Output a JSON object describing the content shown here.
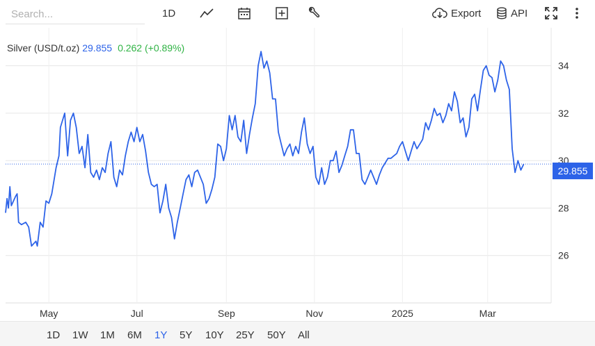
{
  "toolbar": {
    "search_placeholder": "Search...",
    "interval_label": "1D",
    "export_label": "Export",
    "api_label": "API",
    "icons": [
      "line-chart-icon",
      "calendar-icon",
      "plus-square-icon",
      "wrench-icon",
      "cloud-download-icon",
      "database-icon",
      "fullscreen-icon",
      "more-vert-icon",
      "gear-icon"
    ]
  },
  "legend": {
    "name": "Silver (USD/t.oz)",
    "value": "29.855",
    "change": "0.262 (+0.89%)"
  },
  "last_price_label": "29.855",
  "colors": {
    "line": "#2d63e8",
    "change_positive": "#2fb344",
    "grid": "#e6e6e6"
  },
  "range_buttons": [
    "1D",
    "1W",
    "1M",
    "6M",
    "1Y",
    "5Y",
    "10Y",
    "25Y",
    "50Y",
    "All"
  ],
  "active_range": "1Y",
  "chart_data": {
    "type": "line",
    "title": "",
    "xlabel": "",
    "ylabel": "",
    "ylim": [
      24,
      35.6
    ],
    "yticks": [
      26,
      28,
      30,
      32,
      34
    ],
    "xticks": [
      {
        "label": "May",
        "x": "2024-05-01"
      },
      {
        "label": "Jul",
        "x": "2024-07-01"
      },
      {
        "label": "Sep",
        "x": "2024-09-01"
      },
      {
        "label": "Nov",
        "x": "2024-11-01"
      },
      {
        "label": "2025",
        "x": "2025-01-01"
      },
      {
        "label": "Mar",
        "x": "2025-03-01"
      }
    ],
    "xlim": [
      "2024-04-01",
      "2025-04-14"
    ],
    "grid": true,
    "series": [
      {
        "name": "Silver (USD/t.oz)",
        "points": [
          [
            "2024-04-01",
            27.8
          ],
          [
            "2024-04-02",
            28.4
          ],
          [
            "2024-04-03",
            28.0
          ],
          [
            "2024-04-04",
            28.9
          ],
          [
            "2024-04-05",
            28.1
          ],
          [
            "2024-04-08",
            28.5
          ],
          [
            "2024-04-09",
            28.6
          ],
          [
            "2024-04-10",
            27.4
          ],
          [
            "2024-04-12",
            27.3
          ],
          [
            "2024-04-15",
            27.4
          ],
          [
            "2024-04-17",
            27.2
          ],
          [
            "2024-04-19",
            26.4
          ],
          [
            "2024-04-22",
            26.6
          ],
          [
            "2024-04-23",
            26.4
          ],
          [
            "2024-04-25",
            27.4
          ],
          [
            "2024-04-27",
            27.2
          ],
          [
            "2024-04-29",
            28.3
          ],
          [
            "2024-05-01",
            28.2
          ],
          [
            "2024-05-03",
            28.6
          ],
          [
            "2024-05-06",
            29.7
          ],
          [
            "2024-05-08",
            30.2
          ],
          [
            "2024-05-09",
            31.4
          ],
          [
            "2024-05-12",
            32.0
          ],
          [
            "2024-05-14",
            30.2
          ],
          [
            "2024-05-16",
            31.7
          ],
          [
            "2024-05-18",
            32.0
          ],
          [
            "2024-05-20",
            31.4
          ],
          [
            "2024-05-22",
            30.3
          ],
          [
            "2024-05-24",
            30.6
          ],
          [
            "2024-05-26",
            29.7
          ],
          [
            "2024-05-28",
            31.1
          ],
          [
            "2024-05-30",
            29.5
          ],
          [
            "2024-06-01",
            29.3
          ],
          [
            "2024-06-03",
            29.6
          ],
          [
            "2024-06-05",
            29.2
          ],
          [
            "2024-06-07",
            29.7
          ],
          [
            "2024-06-09",
            29.5
          ],
          [
            "2024-06-11",
            30.3
          ],
          [
            "2024-06-13",
            30.8
          ],
          [
            "2024-06-15",
            29.3
          ],
          [
            "2024-06-17",
            28.9
          ],
          [
            "2024-06-19",
            29.6
          ],
          [
            "2024-06-21",
            29.4
          ],
          [
            "2024-06-23",
            30.2
          ],
          [
            "2024-06-25",
            30.8
          ],
          [
            "2024-06-27",
            31.2
          ],
          [
            "2024-06-29",
            30.8
          ],
          [
            "2024-07-01",
            31.4
          ],
          [
            "2024-07-03",
            30.8
          ],
          [
            "2024-07-05",
            31.1
          ],
          [
            "2024-07-07",
            30.4
          ],
          [
            "2024-07-09",
            29.5
          ],
          [
            "2024-07-11",
            29.0
          ],
          [
            "2024-07-13",
            28.9
          ],
          [
            "2024-07-15",
            29.0
          ],
          [
            "2024-07-17",
            27.8
          ],
          [
            "2024-07-19",
            28.3
          ],
          [
            "2024-07-21",
            29.0
          ],
          [
            "2024-07-23",
            28.0
          ],
          [
            "2024-07-25",
            27.6
          ],
          [
            "2024-07-27",
            26.7
          ],
          [
            "2024-07-29",
            27.4
          ],
          [
            "2024-07-31",
            28.0
          ],
          [
            "2024-08-02",
            28.6
          ],
          [
            "2024-08-04",
            29.2
          ],
          [
            "2024-08-06",
            29.4
          ],
          [
            "2024-08-08",
            28.9
          ],
          [
            "2024-08-10",
            29.5
          ],
          [
            "2024-08-12",
            29.6
          ],
          [
            "2024-08-14",
            29.3
          ],
          [
            "2024-08-16",
            29.0
          ],
          [
            "2024-08-18",
            28.2
          ],
          [
            "2024-08-20",
            28.4
          ],
          [
            "2024-08-22",
            28.8
          ],
          [
            "2024-08-24",
            29.3
          ],
          [
            "2024-08-26",
            30.7
          ],
          [
            "2024-08-28",
            30.6
          ],
          [
            "2024-08-30",
            30.0
          ],
          [
            "2024-09-01",
            30.5
          ],
          [
            "2024-09-03",
            31.9
          ],
          [
            "2024-09-05",
            31.3
          ],
          [
            "2024-09-07",
            31.9
          ],
          [
            "2024-09-09",
            31.0
          ],
          [
            "2024-09-11",
            30.8
          ],
          [
            "2024-09-13",
            31.7
          ],
          [
            "2024-09-15",
            30.3
          ],
          [
            "2024-09-17",
            31.1
          ],
          [
            "2024-09-19",
            31.8
          ],
          [
            "2024-09-21",
            32.4
          ],
          [
            "2024-09-23",
            34.0
          ],
          [
            "2024-09-25",
            34.6
          ],
          [
            "2024-09-27",
            33.9
          ],
          [
            "2024-09-29",
            34.2
          ],
          [
            "2024-10-01",
            33.7
          ],
          [
            "2024-10-03",
            32.6
          ],
          [
            "2024-10-05",
            32.6
          ],
          [
            "2024-10-07",
            31.2
          ],
          [
            "2024-10-09",
            30.7
          ],
          [
            "2024-10-11",
            30.2
          ],
          [
            "2024-10-13",
            30.5
          ],
          [
            "2024-10-15",
            30.7
          ],
          [
            "2024-10-17",
            30.2
          ],
          [
            "2024-10-19",
            30.6
          ],
          [
            "2024-10-21",
            30.3
          ],
          [
            "2024-10-23",
            31.2
          ],
          [
            "2024-10-25",
            31.8
          ],
          [
            "2024-10-27",
            30.7
          ],
          [
            "2024-10-29",
            30.3
          ],
          [
            "2024-10-31",
            30.6
          ],
          [
            "2024-11-02",
            29.3
          ],
          [
            "2024-11-04",
            29.0
          ],
          [
            "2024-11-06",
            29.7
          ],
          [
            "2024-11-08",
            29.0
          ],
          [
            "2024-11-10",
            29.3
          ],
          [
            "2024-11-12",
            30.0
          ],
          [
            "2024-11-14",
            30.0
          ],
          [
            "2024-11-16",
            30.4
          ],
          [
            "2024-11-18",
            29.5
          ],
          [
            "2024-11-20",
            29.8
          ],
          [
            "2024-11-22",
            30.2
          ],
          [
            "2024-11-24",
            30.6
          ],
          [
            "2024-11-26",
            31.3
          ],
          [
            "2024-11-28",
            31.3
          ],
          [
            "2024-11-30",
            30.3
          ],
          [
            "2024-12-02",
            30.3
          ],
          [
            "2024-12-04",
            29.2
          ],
          [
            "2024-12-06",
            29.0
          ],
          [
            "2024-12-08",
            29.3
          ],
          [
            "2024-12-10",
            29.6
          ],
          [
            "2024-12-12",
            29.3
          ],
          [
            "2024-12-14",
            29.0
          ],
          [
            "2024-12-16",
            29.4
          ],
          [
            "2024-12-18",
            29.7
          ],
          [
            "2024-12-20",
            29.9
          ],
          [
            "2024-12-22",
            30.1
          ],
          [
            "2024-12-24",
            30.1
          ],
          [
            "2024-12-26",
            30.2
          ],
          [
            "2024-12-28",
            30.3
          ],
          [
            "2024-12-30",
            30.6
          ],
          [
            "2025-01-01",
            30.8
          ],
          [
            "2025-01-03",
            30.4
          ],
          [
            "2025-01-05",
            30.0
          ],
          [
            "2025-01-07",
            30.4
          ],
          [
            "2025-01-09",
            30.8
          ],
          [
            "2025-01-11",
            30.5
          ],
          [
            "2025-01-13",
            30.7
          ],
          [
            "2025-01-15",
            30.9
          ],
          [
            "2025-01-17",
            31.6
          ],
          [
            "2025-01-19",
            31.3
          ],
          [
            "2025-01-21",
            31.7
          ],
          [
            "2025-01-23",
            32.2
          ],
          [
            "2025-01-25",
            31.9
          ],
          [
            "2025-01-27",
            32.0
          ],
          [
            "2025-01-29",
            31.6
          ],
          [
            "2025-01-31",
            31.9
          ],
          [
            "2025-02-02",
            32.4
          ],
          [
            "2025-02-04",
            32.1
          ],
          [
            "2025-02-06",
            32.9
          ],
          [
            "2025-02-08",
            32.5
          ],
          [
            "2025-02-10",
            31.6
          ],
          [
            "2025-02-12",
            31.8
          ],
          [
            "2025-02-14",
            31.0
          ],
          [
            "2025-02-16",
            31.4
          ],
          [
            "2025-02-18",
            32.6
          ],
          [
            "2025-02-20",
            32.8
          ],
          [
            "2025-02-22",
            32.1
          ],
          [
            "2025-02-24",
            33.0
          ],
          [
            "2025-02-26",
            33.8
          ],
          [
            "2025-02-28",
            34.0
          ],
          [
            "2025-03-02",
            33.6
          ],
          [
            "2025-03-04",
            33.5
          ],
          [
            "2025-03-06",
            32.9
          ],
          [
            "2025-03-08",
            33.4
          ],
          [
            "2025-03-10",
            34.2
          ],
          [
            "2025-03-12",
            34.0
          ],
          [
            "2025-03-14",
            33.4
          ],
          [
            "2025-03-16",
            33.0
          ],
          [
            "2025-03-18",
            30.5
          ],
          [
            "2025-03-20",
            29.5
          ],
          [
            "2025-03-22",
            30.0
          ],
          [
            "2025-03-24",
            29.6
          ],
          [
            "2025-03-26",
            29.855
          ]
        ]
      }
    ]
  }
}
